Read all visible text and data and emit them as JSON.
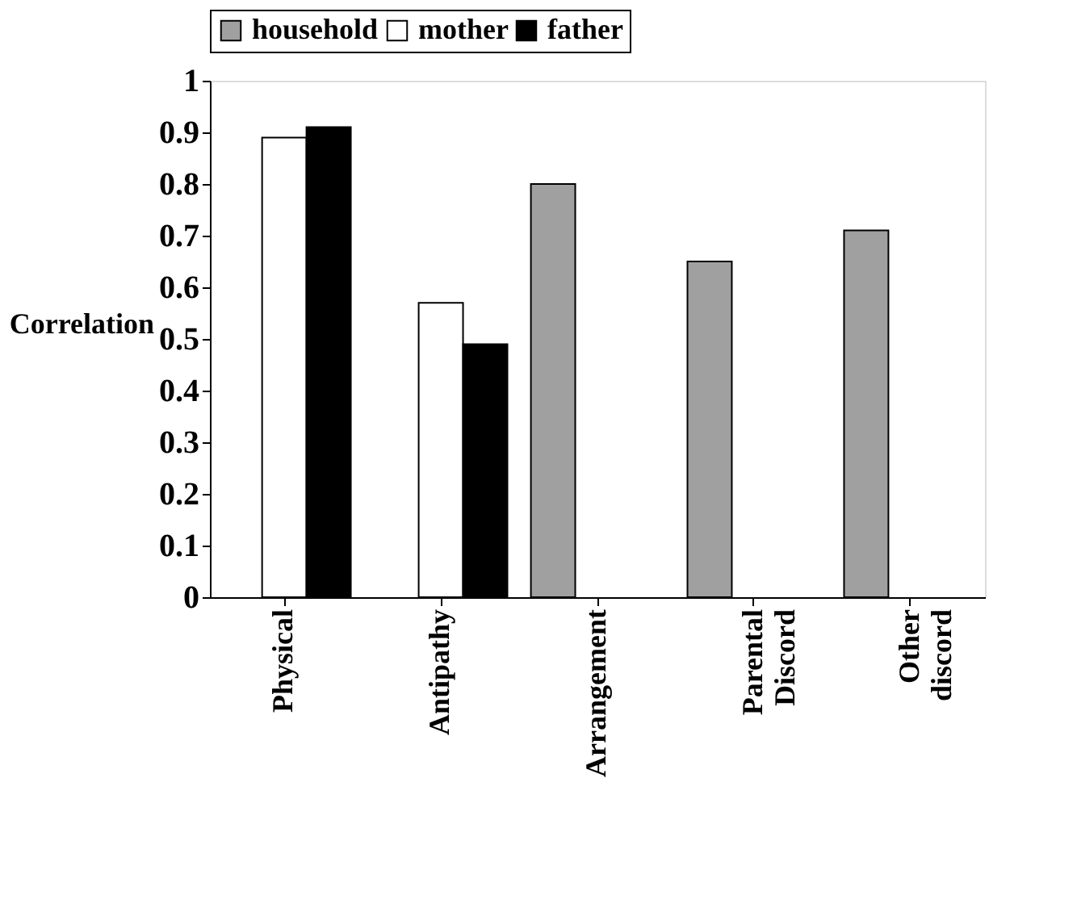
{
  "chart_data": {
    "type": "bar",
    "ylabel": "Correlation",
    "categories": [
      "Physical",
      "Antipathy",
      "Arrangement",
      "Parental Discord",
      "Other discord"
    ],
    "series": [
      {
        "name": "household",
        "color": "#a0a0a0",
        "values": [
          null,
          null,
          0.8,
          0.65,
          0.71
        ]
      },
      {
        "name": "mother",
        "color": "#ffffff",
        "values": [
          0.89,
          0.57,
          null,
          null,
          null
        ]
      },
      {
        "name": "father",
        "color": "#000000",
        "values": [
          0.91,
          0.49,
          null,
          null,
          null
        ]
      }
    ],
    "ylim": [
      0,
      1
    ],
    "yticks": [
      0,
      0.1,
      0.2,
      0.3,
      0.4,
      0.5,
      0.6,
      0.7,
      0.8,
      0.9,
      1
    ],
    "grid": false,
    "legend": "top"
  }
}
